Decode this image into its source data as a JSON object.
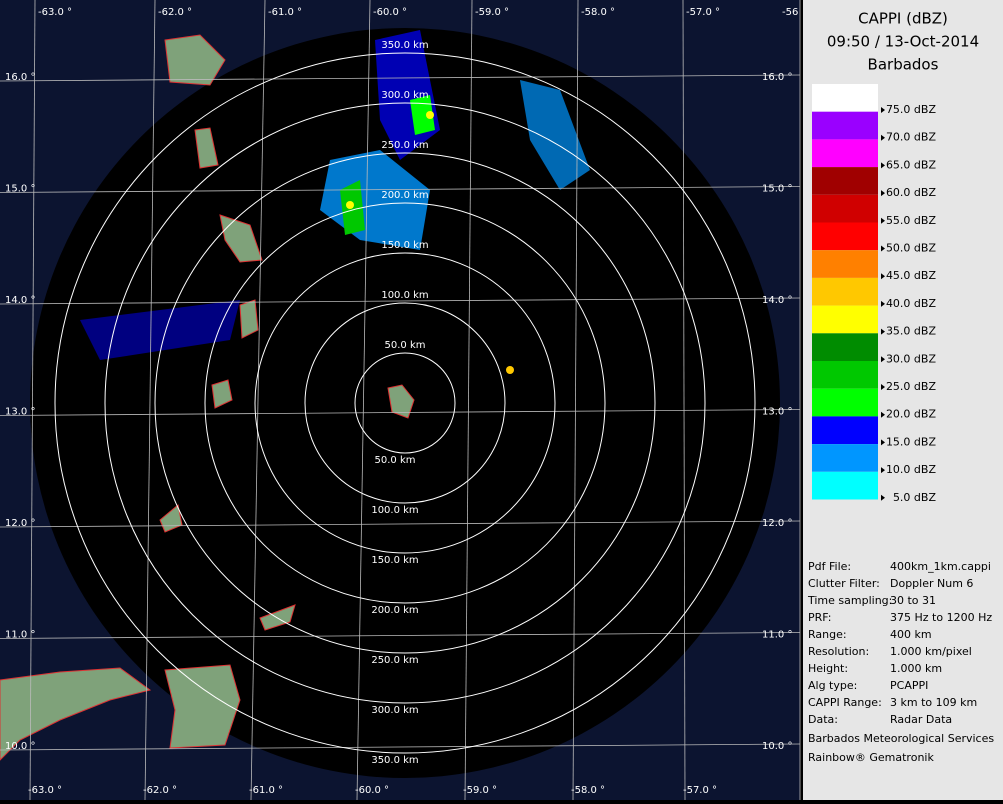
{
  "header": {
    "title": "CAPPI (dBZ)",
    "time": "09:50 / 13-Oct-2014",
    "station": "Barbados"
  },
  "legend": [
    {
      "label": "75.0 dBZ",
      "color": "#ffffff"
    },
    {
      "label": "70.0 dBZ",
      "color": "#9a00ff"
    },
    {
      "label": "65.0 dBZ",
      "color": "#ff00ff"
    },
    {
      "label": "60.0 dBZ",
      "color": "#a00000"
    },
    {
      "label": "55.0 dBZ",
      "color": "#d00000"
    },
    {
      "label": "50.0 dBZ",
      "color": "#ff0000"
    },
    {
      "label": "45.0 dBZ",
      "color": "#ff8000"
    },
    {
      "label": "40.0 dBZ",
      "color": "#ffc800"
    },
    {
      "label": "35.0 dBZ",
      "color": "#ffff00"
    },
    {
      "label": "30.0 dBZ",
      "color": "#008c00"
    },
    {
      "label": "25.0 dBZ",
      "color": "#00c800"
    },
    {
      "label": "20.0 dBZ",
      "color": "#00ff00"
    },
    {
      "label": "15.0 dBZ",
      "color": "#0000ff"
    },
    {
      "label": "10.0 dBZ",
      "color": "#0096ff"
    },
    {
      "label": "5.0 dBZ",
      "color": "#00ffff"
    }
  ],
  "info": [
    [
      "Pdf File:",
      "400km_1km.cappi"
    ],
    [
      "Clutter Filter:",
      "Doppler Num 6"
    ],
    [
      "Time sampling:",
      "30 to 31"
    ],
    [
      "PRF:",
      "375 Hz to 1200 Hz"
    ],
    [
      "Range:",
      "400 km"
    ],
    [
      "Resolution:",
      "1.000 km/pixel"
    ],
    [
      "Height:",
      "1.000 km"
    ],
    [
      "Alg type:",
      "PCAPPI"
    ],
    [
      "CAPPI Range:",
      "3 km to 109 km"
    ],
    [
      "Data:",
      "Radar Data"
    ]
  ],
  "credits": [
    "Barbados Meteorological Services",
    "Rainbow® Gematronik"
  ],
  "map": {
    "rings": [
      "50.0 km",
      "100.0 km",
      "150.0 km",
      "200.0 km",
      "250.0 km",
      "300.0 km",
      "350.0 km"
    ],
    "longitudes": [
      "-63.0 °",
      "-62.0 °",
      "-61.0 °",
      "-60.0 °",
      "-59.0 °",
      "-58.0 °",
      "-57.0 °"
    ],
    "longitude_cut": "-56",
    "latitudes": [
      "16.0 °",
      "15.0 °",
      "14.0 °",
      "13.0 °",
      "12.0 °",
      "11.0 °",
      "10.0 °"
    ]
  }
}
